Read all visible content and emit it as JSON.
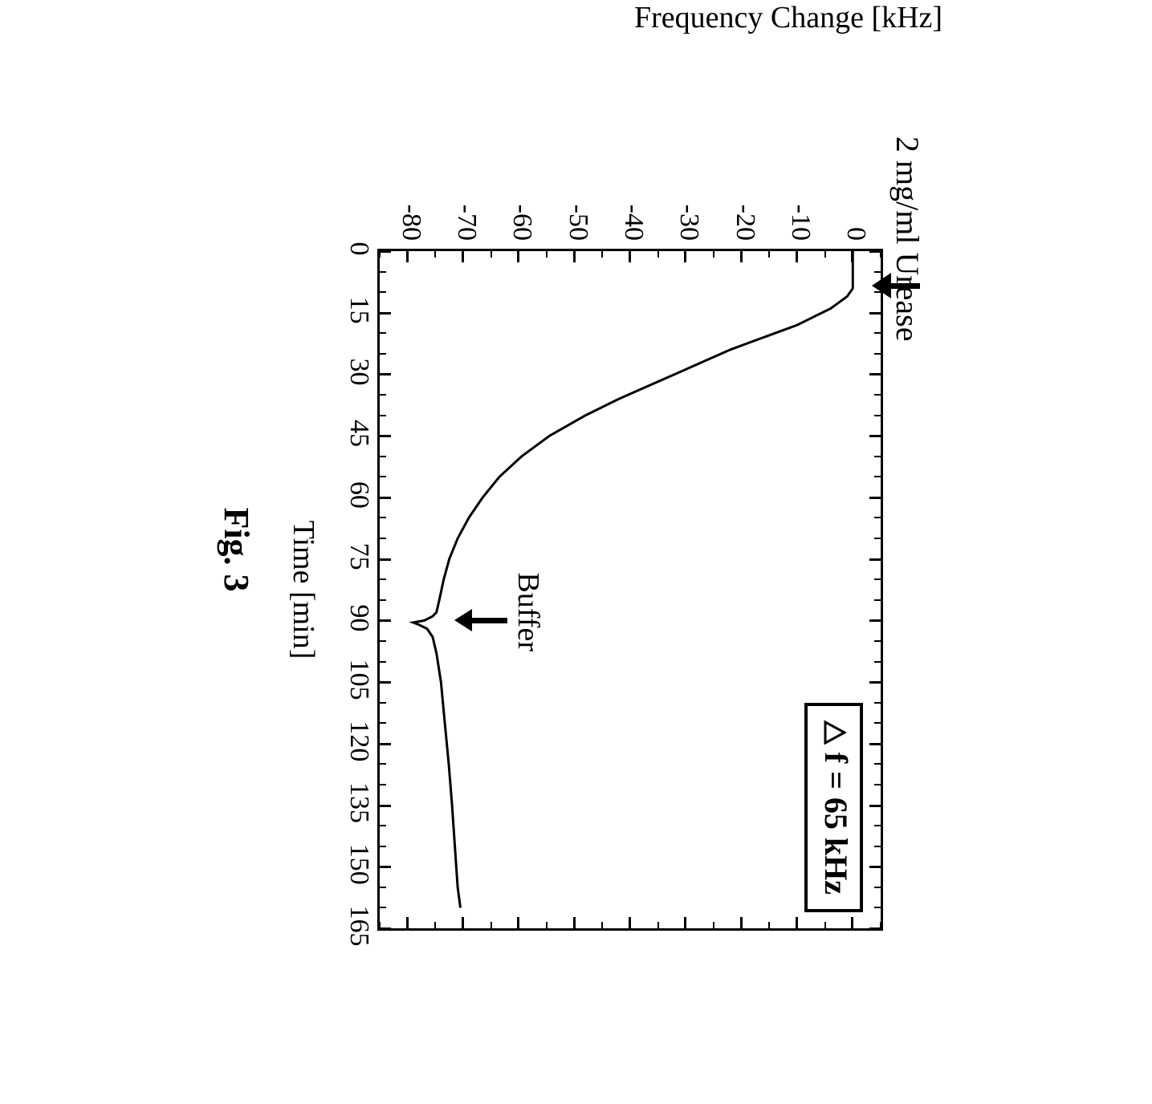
{
  "chart": {
    "type": "line",
    "xlabel": "Time [min]",
    "ylabel": "Frequency Change  [kHz]",
    "label_fontsize": 38,
    "tick_fontsize": 34,
    "xlim": [
      0,
      165
    ],
    "ylim": [
      -85,
      5
    ],
    "xticks": [
      0,
      15,
      30,
      45,
      60,
      75,
      90,
      105,
      120,
      135,
      150,
      165
    ],
    "yticks": [
      0,
      -10,
      -20,
      -30,
      -40,
      -50,
      -60,
      -70,
      -80
    ],
    "minor_x_step": 5,
    "minor_y_step": 5,
    "line_color": "#000000",
    "line_width": 3,
    "background_color": "#ffffff",
    "border_color": "#000000",
    "data": {
      "x": [
        0,
        5,
        9,
        9.5,
        10,
        11,
        12,
        14,
        16,
        18,
        20,
        22,
        24,
        27,
        30,
        33,
        36,
        40,
        45,
        50,
        55,
        60,
        65,
        70,
        75,
        80,
        85,
        88,
        89,
        90,
        90.5,
        91,
        92,
        94,
        98,
        105,
        115,
        125,
        135,
        145,
        155,
        160
      ],
      "y": [
        0,
        0,
        0,
        -0.2,
        -0.5,
        -1,
        -2,
        -4,
        -7,
        -10,
        -14,
        -18,
        -22,
        -27,
        -32,
        -37,
        -42,
        -48,
        -54.5,
        -59.5,
        -63.5,
        -66.5,
        -69,
        -71,
        -72.5,
        -73.5,
        -74.3,
        -74.8,
        -75.5,
        -77,
        -79,
        -78,
        -76.5,
        -75.5,
        -74.8,
        -74,
        -73.3,
        -72.6,
        -72,
        -71.5,
        -71,
        -70.5
      ]
    },
    "annotations": {
      "urease": {
        "text": "2 mg/ml Urease",
        "x": 9,
        "y_from": 5,
        "style": "outside-top"
      },
      "buffer": {
        "text": "Buffer",
        "x": 90,
        "y_from": -62,
        "style": "above-dip"
      }
    },
    "legend": {
      "text": "Δ f = 65 kHz",
      "delta_symbol": "Δ",
      "position": "top-right-inside",
      "border_color": "#000000",
      "border_width": 4
    }
  },
  "caption": "Fig. 3"
}
